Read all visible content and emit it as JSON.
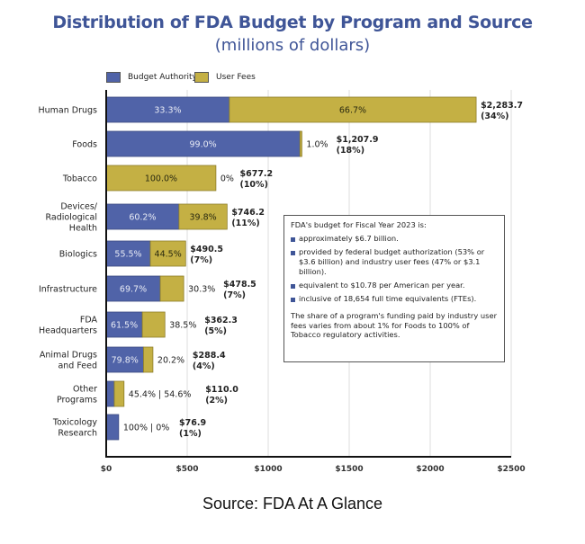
{
  "colors": {
    "budget_authority": "#5063a8",
    "user_fees": "#c4b044",
    "title": "#3f5597"
  },
  "chart_data": {
    "type": "bar",
    "orientation": "horizontal",
    "stacked": true,
    "title": "Distribution of FDA Budget by Program and Source",
    "subtitle": "(millions of dollars)",
    "xlabel": "",
    "ylabel": "",
    "xlim": [
      0,
      2500
    ],
    "x_ticks": [
      0,
      500,
      1000,
      1500,
      2000,
      2500
    ],
    "x_tick_labels": [
      "$0",
      "$500",
      "$1000",
      "$1500",
      "$2000",
      "$2500"
    ],
    "grid": true,
    "legend_position": "top-left",
    "legend": [
      "Budget Authority",
      "User Fees"
    ],
    "categories": [
      "Human Drugs",
      "Foods",
      "Tobacco",
      "Devices/ Radiological Health",
      "Biologics",
      "Infrastructure",
      "FDA Headquarters",
      "Animal Drugs and Feed",
      "Other Programs",
      "Toxicology Research"
    ],
    "category_lines": [
      [
        "Human Drugs"
      ],
      [
        "Foods"
      ],
      [
        "Tobacco"
      ],
      [
        "Devices/",
        "Radiological",
        "Health"
      ],
      [
        "Biologics"
      ],
      [
        "Infrastructure"
      ],
      [
        "FDA",
        "Headquarters"
      ],
      [
        "Animal Drugs",
        "and Feed"
      ],
      [
        "Other",
        "Programs"
      ],
      [
        "Toxicology",
        "Research"
      ]
    ],
    "totals": [
      2283.7,
      1207.9,
      677.2,
      746.2,
      490.5,
      478.5,
      362.3,
      288.4,
      110.0,
      76.9
    ],
    "series": [
      {
        "name": "Budget Authority",
        "share_pct": [
          33.3,
          99.0,
          0,
          60.2,
          55.5,
          69.7,
          61.5,
          79.8,
          45.4,
          100
        ]
      },
      {
        "name": "User Fees",
        "share_pct": [
          66.7,
          1.0,
          100.0,
          39.8,
          44.5,
          30.3,
          38.5,
          20.2,
          54.6,
          0
        ]
      }
    ],
    "ba_labels": [
      "33.3%",
      "99.0%",
      "",
      "60.2%",
      "55.5%",
      "69.7%",
      "61.5%",
      "79.8%",
      "",
      ""
    ],
    "uf_labels": [
      "66.7%",
      "",
      "100.0%",
      "39.8%",
      "44.5%",
      "",
      "",
      "",
      "",
      ""
    ],
    "outside_labels": [
      "",
      "1.0%",
      "0%",
      "",
      "",
      "30.3%",
      "38.5%",
      "20.2%",
      "45.4% | 54.6%",
      "100% | 0%"
    ],
    "total_labels": [
      "$2,283.7",
      "$1,207.9",
      "$677.2",
      "$746.2",
      "$490.5",
      "$478.5",
      "$362.3",
      "$288.4",
      "$110.0",
      "$76.9"
    ],
    "total_share_labels": [
      "(34%)",
      "(18%)",
      "(10%)",
      "(11%)",
      "(7%)",
      "(7%)",
      "(5%)",
      "(4%)",
      "(2%)",
      "(1%)"
    ]
  },
  "legend": {
    "budget_authority": "Budget Authority",
    "user_fees": "User Fees"
  },
  "infobox": {
    "heading": "FDA's budget for Fiscal Year 2023 is:",
    "bullets": [
      "approximately $6.7 billion.",
      "provided by federal budget authorization (53% or $3.6 billion) and industry user fees (47% or $3.1 billion).",
      "equivalent to $10.78 per American per year.",
      "inclusive of 18,654 full time equivalents (FTEs)."
    ],
    "footer": "The share of a program's funding paid by industry user fees varies from about 1% for Foods to 100% of Tobacco regulatory activities."
  },
  "source": "Source: FDA At A Glance"
}
